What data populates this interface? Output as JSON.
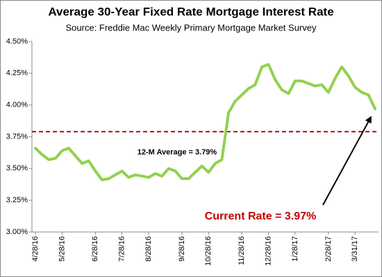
{
  "chart_data": {
    "type": "line",
    "title": "Average 30-Year Fixed Rate Mortgage Interest Rate",
    "subtitle": "Source: Freddie Mac Weekly Primary Mortgage Market Survey",
    "categories": [
      "4/28/16",
      null,
      null,
      null,
      "5/28/16",
      null,
      null,
      null,
      null,
      "6/28/16",
      null,
      null,
      null,
      "7/28/16",
      null,
      null,
      null,
      "8/28/16",
      null,
      null,
      null,
      null,
      "9/28/16",
      null,
      null,
      null,
      "10/28/16",
      null,
      null,
      null,
      null,
      "11/28/16",
      null,
      null,
      null,
      "12/28/16",
      null,
      null,
      null,
      "1/28/17",
      null,
      null,
      null,
      null,
      "2/28/17",
      null,
      null,
      null,
      "3/31/17",
      null,
      null,
      null
    ],
    "series": [
      {
        "name": "30-Year Fixed Rate",
        "color": "#92d050",
        "values": [
          3.66,
          3.61,
          3.57,
          3.58,
          3.64,
          3.66,
          3.6,
          3.54,
          3.56,
          3.48,
          3.41,
          3.42,
          3.45,
          3.48,
          3.43,
          3.45,
          3.44,
          3.43,
          3.46,
          3.44,
          3.5,
          3.48,
          3.42,
          3.42,
          3.47,
          3.52,
          3.47,
          3.54,
          3.57,
          3.94,
          4.03,
          4.08,
          4.13,
          4.16,
          4.3,
          4.32,
          4.2,
          4.12,
          4.09,
          4.19,
          4.19,
          4.17,
          4.15,
          4.16,
          4.1,
          4.21,
          4.3,
          4.23,
          4.14,
          4.1,
          4.08,
          3.97
        ]
      }
    ],
    "ylim": [
      3.0,
      4.5
    ],
    "yticks": [
      {
        "value": 3.0,
        "label": "3.00%"
      },
      {
        "value": 3.25,
        "label": "3.25%"
      },
      {
        "value": 3.5,
        "label": "3.50%"
      },
      {
        "value": 3.75,
        "label": "3.75%"
      },
      {
        "value": 4.0,
        "label": "4.00%"
      },
      {
        "value": 4.25,
        "label": "4.25%"
      },
      {
        "value": 4.5,
        "label": "4.50%"
      }
    ],
    "grid": false,
    "reference_line": {
      "value": 3.79,
      "label": "12-M Average = 3.79%",
      "color": "#c00000"
    },
    "annotation": {
      "text": "Current Rate = 3.97%",
      "color": "#c00000"
    }
  }
}
